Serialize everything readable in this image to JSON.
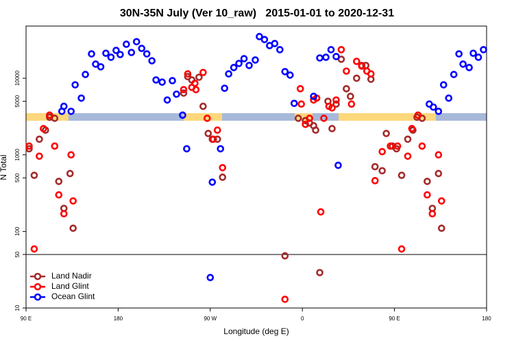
{
  "chart_data": {
    "type": "scatter",
    "title": "30N-35N July (Ver 10_raw)   2015-01-01 to 2020-12-31",
    "x_label": "Longitude (deg E)",
    "y_label": "N Total",
    "xlim": [
      90,
      540
    ],
    "ylim": [
      10,
      48000
    ],
    "ylog": true,
    "xticks": [
      {
        "value": 90,
        "label": "90 E"
      },
      180,
      {
        "value": 270,
        "label": "90 W"
      },
      {
        "value": 360,
        "label": "0"
      },
      {
        "value": 450,
        "label": "90 E"
      },
      {
        "value": 540,
        "label": "180"
      }
    ],
    "yticks": [
      10,
      50,
      100,
      500,
      1000,
      5000,
      10000
    ],
    "hline": 50,
    "legend": "bottomleft",
    "series": [
      {
        "name": "Land Nadir",
        "color": "#a52a2a",
        "x": [
          93,
          98,
          103,
          109,
          113,
          118,
          122,
          127,
          133,
          136,
          244,
          248,
          252,
          259,
          263,
          268,
          272,
          277,
          282,
          343,
          356,
          363,
          367,
          371,
          373,
          377,
          385,
          389,
          393,
          398,
          403,
          407,
          413,
          418,
          422,
          427,
          431,
          438,
          442,
          448,
          452,
          457,
          463,
          468,
          472,
          477,
          482,
          487,
          493,
          496
        ],
        "values": [
          1200,
          540,
          1600,
          2100,
          3100,
          3000,
          450,
          200,
          570,
          110,
          6400,
          10500,
          9500,
          10300,
          4300,
          1900,
          1600,
          1600,
          510,
          48,
          3000,
          2800,
          2600,
          2400,
          2100,
          29,
          5000,
          2200,
          4600,
          17700,
          7300,
          5800,
          10000,
          14700,
          14700,
          9700,
          700,
          620,
          1900,
          1300,
          1200,
          540,
          1600,
          2100,
          3100,
          3000,
          450,
          200,
          570,
          110
        ]
      },
      {
        "name": "Land Glint",
        "color": "#ff0000",
        "x": [
          93,
          98,
          103,
          107,
          113,
          118,
          122,
          127,
          134,
          136,
          244,
          248,
          252,
          255,
          256,
          263,
          267,
          273,
          277,
          282,
          343,
          358,
          359,
          363,
          367,
          371,
          374,
          378,
          381,
          386,
          389,
          393,
          398,
          403,
          408,
          413,
          418,
          423,
          427,
          431,
          438,
          446,
          453,
          457,
          463,
          467,
          473,
          477,
          482,
          487,
          493,
          496
        ],
        "values": [
          1300,
          59,
          960,
          2200,
          3300,
          1300,
          300,
          170,
          1000,
          250,
          7100,
          11400,
          7600,
          8600,
          7100,
          11900,
          3000,
          1600,
          2100,
          680,
          13,
          7300,
          4600,
          2500,
          3000,
          5200,
          5500,
          180,
          3000,
          4300,
          4100,
          5200,
          23600,
          12400,
          4600,
          16600,
          14400,
          12400,
          11400,
          460,
          1100,
          1300,
          1300,
          59,
          960,
          2200,
          3300,
          1300,
          300,
          170,
          1000,
          250
        ]
      },
      {
        "name": "Ocean Glint",
        "color": "#0000ff",
        "x": [
          125,
          127,
          134,
          138,
          144,
          148,
          154,
          158,
          163,
          168,
          173,
          178,
          182,
          188,
          193,
          198,
          203,
          208,
          213,
          217,
          223,
          228,
          233,
          237,
          243,
          247,
          270,
          272,
          280,
          284,
          288,
          293,
          298,
          303,
          308,
          314,
          318,
          323,
          328,
          333,
          338,
          343,
          348,
          352,
          371,
          377,
          383,
          388,
          393,
          395,
          484,
          488,
          493,
          498,
          503,
          508,
          513,
          517,
          523,
          527,
          532,
          537
        ],
        "values": [
          3700,
          4300,
          3700,
          8200,
          5500,
          11200,
          20800,
          15300,
          14100,
          21200,
          18800,
          23100,
          20400,
          27800,
          21700,
          30000,
          24500,
          20800,
          16900,
          9500,
          8900,
          5200,
          9300,
          6200,
          3300,
          1200,
          25,
          440,
          1200,
          7400,
          11400,
          13800,
          15600,
          18000,
          14700,
          17300,
          35000,
          32000,
          26700,
          28400,
          23600,
          12200,
          11000,
          4700,
          5800,
          18400,
          18800,
          23600,
          19200,
          730,
          4600,
          4200,
          3700,
          8200,
          5500,
          11200,
          20800,
          15300,
          13800,
          21200,
          18800,
          23600
        ]
      }
    ]
  }
}
